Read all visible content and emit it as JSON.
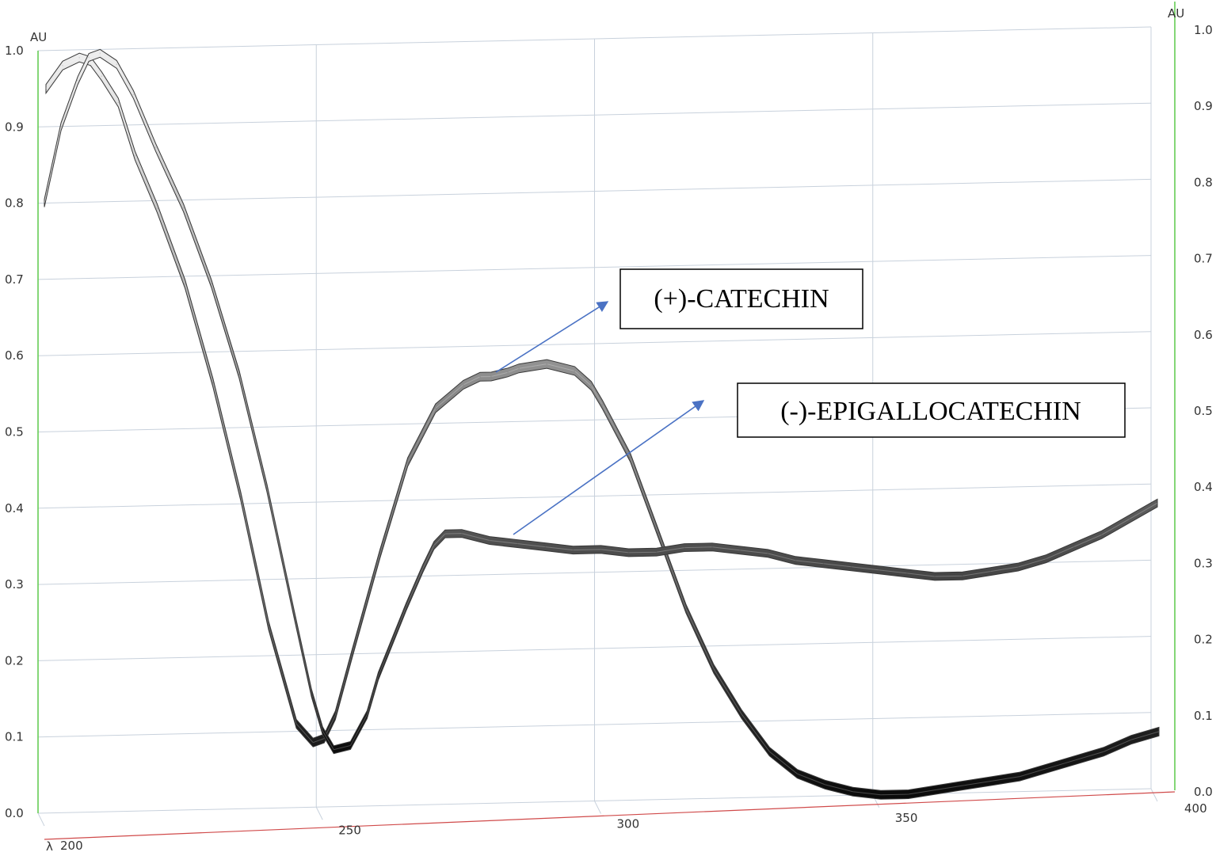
{
  "chart_data": {
    "type": "line",
    "title": "",
    "xlabel": "λ",
    "ylabel": "AU",
    "ylabel_right": "AU",
    "xlim": [
      200,
      400
    ],
    "ylim": [
      0.0,
      1.0
    ],
    "x_ticks": [
      "200",
      "250",
      "300",
      "350",
      "400"
    ],
    "y_ticks": [
      "0.0",
      "0.1",
      "0.2",
      "0.3",
      "0.4",
      "0.5",
      "0.6",
      "0.7",
      "0.8",
      "0.9",
      "1.0"
    ],
    "grid": true,
    "series": [
      {
        "name": "(+)-CATECHIN",
        "x": [
          200,
          203,
          206,
          208,
          210,
          213,
          216,
          220,
          225,
          230,
          235,
          240,
          245,
          248,
          250,
          252,
          255,
          260,
          265,
          270,
          275,
          278,
          280,
          283,
          285,
          290,
          295,
          298,
          300,
          305,
          310,
          315,
          320,
          325,
          330,
          335,
          340,
          345,
          350,
          355,
          360,
          365,
          370,
          375,
          380,
          385,
          390,
          395,
          400
        ],
        "values": [
          0.95,
          0.98,
          0.99,
          0.985,
          0.965,
          0.93,
          0.86,
          0.79,
          0.69,
          0.56,
          0.41,
          0.24,
          0.11,
          0.085,
          0.09,
          0.12,
          0.2,
          0.33,
          0.45,
          0.52,
          0.55,
          0.56,
          0.56,
          0.565,
          0.57,
          0.575,
          0.565,
          0.545,
          0.52,
          0.45,
          0.35,
          0.25,
          0.17,
          0.11,
          0.06,
          0.03,
          0.015,
          0.005,
          0.0,
          0.0,
          0.005,
          0.01,
          0.015,
          0.02,
          0.03,
          0.04,
          0.05,
          0.065,
          0.075
        ]
      },
      {
        "name": "(-)-EPIGALLOCATECHIN",
        "x": [
          200,
          203,
          206,
          208,
          210,
          213,
          216,
          220,
          225,
          230,
          235,
          240,
          245,
          248,
          250,
          252,
          255,
          258,
          260,
          265,
          268,
          270,
          272,
          275,
          280,
          285,
          290,
          295,
          300,
          305,
          310,
          315,
          320,
          325,
          330,
          335,
          340,
          345,
          350,
          355,
          360,
          365,
          370,
          375,
          380,
          385,
          390,
          395,
          400
        ],
        "values": [
          0.8,
          0.9,
          0.96,
          0.99,
          0.995,
          0.98,
          0.94,
          0.87,
          0.79,
          0.69,
          0.57,
          0.42,
          0.25,
          0.15,
          0.1,
          0.075,
          0.08,
          0.12,
          0.17,
          0.26,
          0.31,
          0.34,
          0.355,
          0.355,
          0.345,
          0.34,
          0.335,
          0.33,
          0.33,
          0.325,
          0.325,
          0.33,
          0.33,
          0.325,
          0.32,
          0.31,
          0.305,
          0.3,
          0.295,
          0.29,
          0.285,
          0.285,
          0.29,
          0.295,
          0.305,
          0.32,
          0.335,
          0.355,
          0.375
        ]
      }
    ],
    "annotations": [
      {
        "text": "(+)-CATECHIN",
        "series": "(+)-CATECHIN"
      },
      {
        "text": "(-)-EPIGALLOCATECHIN",
        "series": "(-)-EPIGALLOCATECHIN"
      }
    ],
    "colors": {
      "grid": "#c8d1dc",
      "left_axis": "#66cc55",
      "right_axis": "#66cc55",
      "x_axis": "#d04a4a",
      "arrow": "#4a72c4",
      "callout_border": "#000000"
    }
  }
}
